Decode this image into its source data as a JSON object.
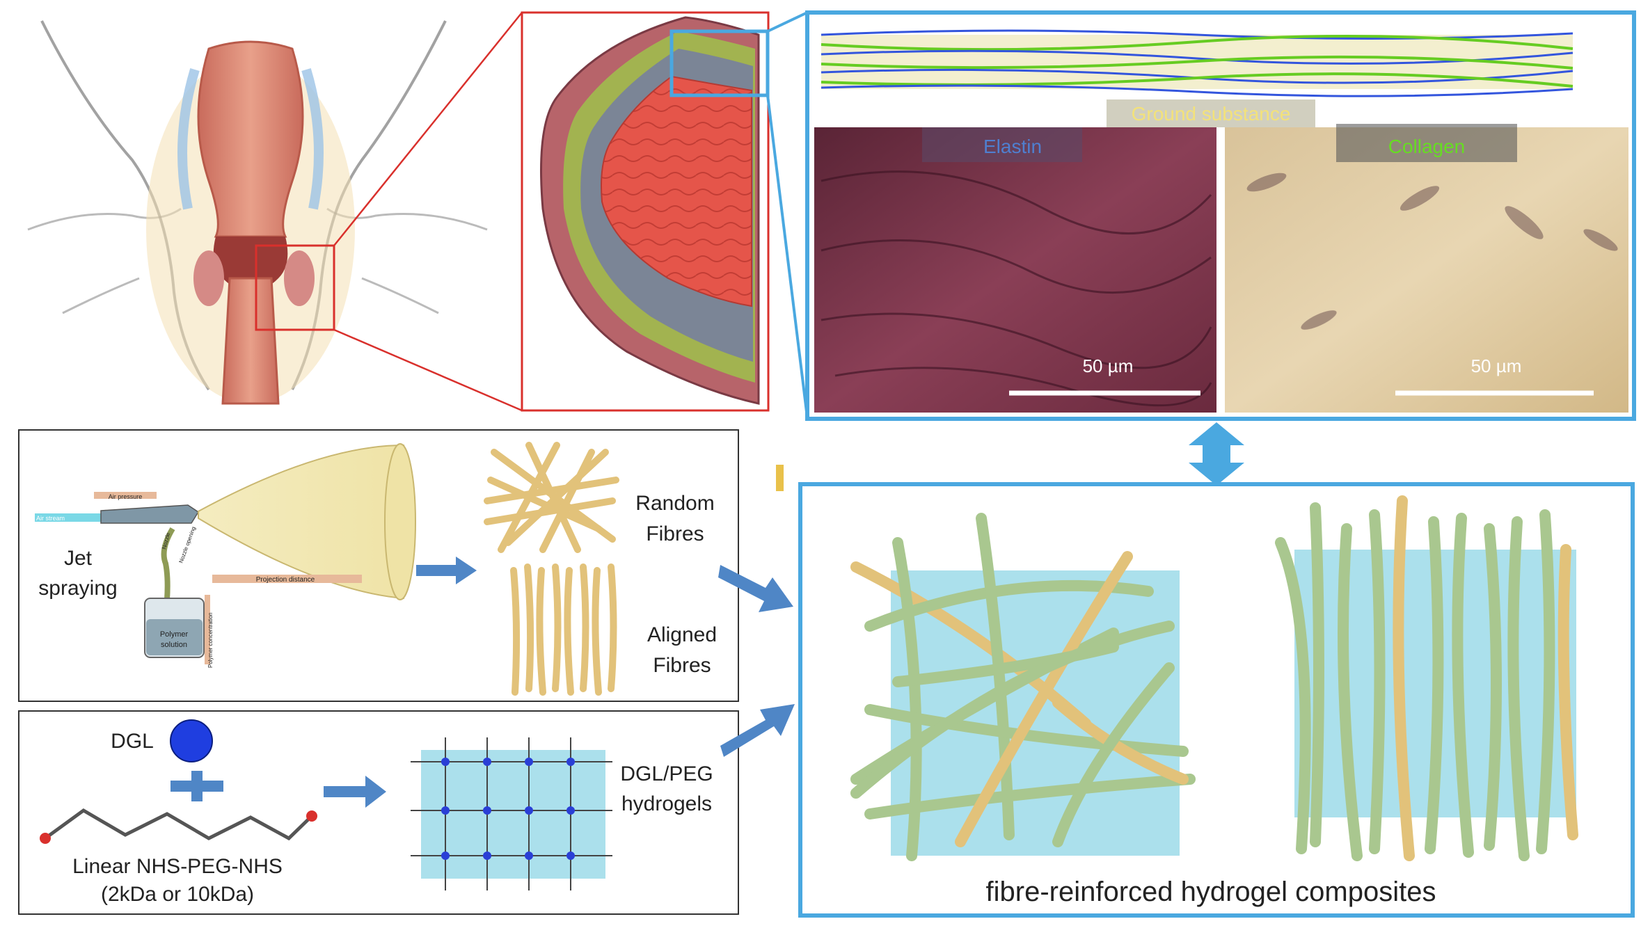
{
  "panels": {
    "tissue": {
      "ground_substance": "Ground substance",
      "elastin": "Elastin",
      "collagen": "Collagen",
      "scale_left": "50 µm",
      "scale_right": "50 µm"
    },
    "spraying": {
      "jet_line1": "Jet",
      "jet_line2": "spraying",
      "air_pressure": "Air pressure",
      "air_stream": "Air stream",
      "nozzle": "Nozzle",
      "nozzle_opening": "Nozzle opening",
      "projection_distance": "Projection distance",
      "polymer_solution_1": "Polymer",
      "polymer_solution_2": "solution",
      "polymer_concentration": "Polymer concentration",
      "random_1": "Random",
      "random_2": "Fibres",
      "aligned_1": "Aligned",
      "aligned_2": "Fibres"
    },
    "hydrogel": {
      "dgl": "DGL",
      "linker_1": "Linear NHS-PEG-NHS",
      "linker_2": "(2kDa or 10kDa)",
      "product_1": "DGL/PEG",
      "product_2": "hydrogels"
    },
    "composite": {
      "caption": "fibre-reinforced hydrogel composites"
    }
  },
  "colors": {
    "panel_blue": "#4aa8e0",
    "arrow_blue": "#4f86c6",
    "fibre_yellow": "#e2c27a",
    "fibre_green": "#a9c78f",
    "hydrogel_cyan": "#8fd6e6",
    "zoom_red": "#d9302c",
    "elastin": "#4f7fd0",
    "collagen": "#66dd22"
  }
}
